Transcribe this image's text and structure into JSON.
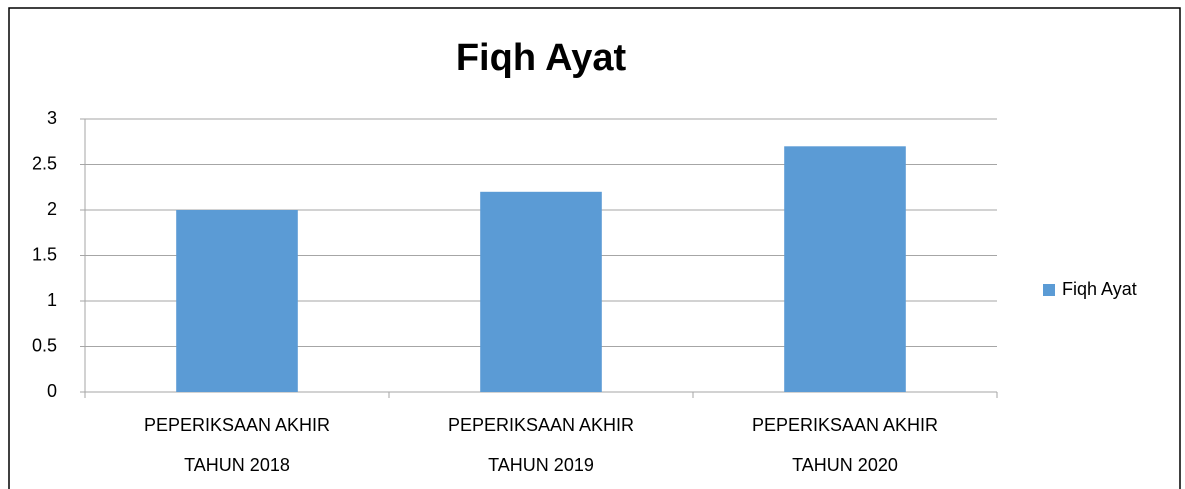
{
  "chart_data": {
    "type": "bar",
    "title": "Fiqh Ayat",
    "categories": [
      "PEPERIKSAAN AKHIR\nTAHUN 2018",
      "PEPERIKSAAN AKHIR\nTAHUN 2019",
      "PEPERIKSAAN AKHIR\nTAHUN 2020"
    ],
    "series": [
      {
        "name": "Fiqh Ayat",
        "color": "#5b9bd5",
        "values": [
          2,
          2.2,
          2.7
        ]
      }
    ],
    "ylim": [
      0,
      3
    ],
    "yticks": [
      0,
      0.5,
      1,
      1.5,
      2,
      2.5,
      3
    ],
    "grid": true,
    "legend": "right"
  }
}
